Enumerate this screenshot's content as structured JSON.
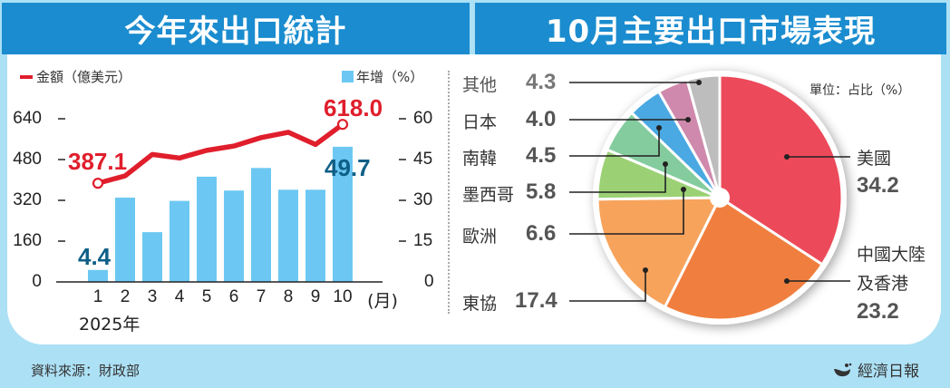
{
  "left_panel": {
    "title": "今年來出口統計",
    "legend_amount": "金額（億美元）",
    "legend_growth": "年增（%）",
    "year_label": "2025年",
    "month_unit": "(月)"
  },
  "right_panel": {
    "title": "10月主要出口市場表現",
    "unit_label": "單位：占比（%）"
  },
  "footer": {
    "source": "資料來源：財政部",
    "brand": "經濟日報"
  },
  "colors": {
    "banner": "#1a8ccf",
    "background": "#ace0f5",
    "line": "#e01e2c",
    "bar": "#6cc8f2",
    "bar_label": "#0e5f87"
  },
  "chart_data": [
    {
      "type": "bar+line",
      "title": "今年來出口統計",
      "categories": [
        "1",
        "2",
        "3",
        "4",
        "5",
        "6",
        "7",
        "8",
        "9",
        "10"
      ],
      "xlabel": "(月) 2025年",
      "series": [
        {
          "name": "金額（億美元）",
          "type": "line",
          "axis": "left",
          "values": [
            387.1,
            416,
            500,
            486,
            516,
            533,
            566,
            587,
            539,
            618.0
          ],
          "labeled": {
            "1": "387.1",
            "10": "618.0"
          }
        },
        {
          "name": "年增（%）",
          "type": "bar",
          "axis": "right",
          "values": [
            4.4,
            31.0,
            18.3,
            29.8,
            38.7,
            33.6,
            41.9,
            33.9,
            33.9,
            49.7
          ],
          "labeled": {
            "1": "4.4",
            "10": "49.7"
          }
        }
      ],
      "left_axis": {
        "ticks": [
          "0",
          "160",
          "320",
          "480",
          "640"
        ],
        "ylim": [
          0,
          640
        ]
      },
      "right_axis": {
        "ticks": [
          "0",
          "15",
          "30",
          "45",
          "60"
        ],
        "ylim": [
          0,
          60
        ]
      },
      "labels": {
        "first_amount": "387.1",
        "last_amount": "618.0",
        "first_growth": "4.4",
        "last_growth": "49.7"
      }
    },
    {
      "type": "pie",
      "title": "10月主要出口市場表現",
      "unit": "單位：占比（%）",
      "slices": [
        {
          "name": "美國",
          "value": 34.2,
          "display": "34.2",
          "color": "#ec4a5a"
        },
        {
          "name": "中國大陸及香港",
          "line1": "中國大陸",
          "line2": "及香港",
          "value": 23.2,
          "display": "23.2",
          "color": "#f07f3f"
        },
        {
          "name": "東協",
          "value": 17.4,
          "display": "17.4",
          "color": "#f7a35c"
        },
        {
          "name": "歐洲",
          "value": 6.6,
          "display": "6.6",
          "color": "#9bd174"
        },
        {
          "name": "墨西哥",
          "value": 5.8,
          "display": "5.8",
          "color": "#84cc9e"
        },
        {
          "name": "南韓",
          "value": 4.5,
          "display": "4.5",
          "color": "#4aa8e2"
        },
        {
          "name": "日本",
          "value": 4.0,
          "display": "4.0",
          "color": "#cf89ac"
        },
        {
          "name": "其他",
          "value": 4.3,
          "display": "4.3",
          "color": "#bdbdbd"
        }
      ]
    }
  ]
}
